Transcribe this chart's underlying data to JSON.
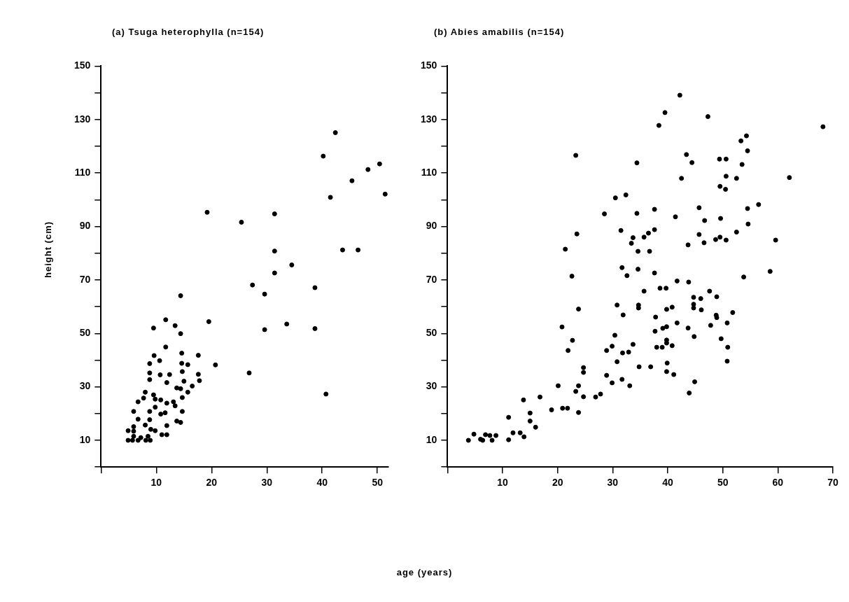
{
  "chart_data": [
    {
      "type": "scatter",
      "title": "(a) Tsuga heterophylla (n=154)",
      "ylabel": "height (cm)",
      "xlabel": "age (years)",
      "marker": "circle",
      "xlim": [
        0,
        52
      ],
      "ylim": [
        0,
        150
      ],
      "xticks": [
        {
          "value": 0,
          "label": null
        },
        10,
        20,
        30,
        40,
        50
      ],
      "yticks": [
        {
          "value": 0,
          "label": null
        },
        10,
        {
          "value": 20,
          "label": null
        },
        30,
        {
          "value": 40,
          "label": null
        },
        50,
        {
          "value": 60,
          "label": null
        },
        70,
        {
          "value": 80,
          "label": null
        },
        90,
        {
          "value": 100,
          "label": null
        },
        110,
        {
          "value": 120,
          "label": null
        },
        130,
        {
          "value": 140,
          "label": null
        },
        150
      ],
      "series": [
        {
          "color": "#000000",
          "x": [
            42.4,
            40.2,
            50.4,
            48.3,
            45.4,
            41.5,
            51.4,
            19.2,
            25.4,
            31.4,
            31.4,
            43.7,
            46.5,
            34.5,
            31.4,
            27.4,
            29.6,
            38.7,
            14.4,
            19.5,
            29.6,
            33.6,
            38.7,
            20.7,
            26.8,
            40.7,
            9.5,
            11.7,
            13.4,
            14.4,
            11.7,
            9.6,
            10.6,
            8.8,
            14.6,
            17.6,
            14.6,
            15.7,
            8.8,
            8.8,
            10.7,
            12.4,
            11.9,
            14.7,
            17.6,
            17.8,
            15.0,
            16.5,
            13.7,
            14.4,
            15.7,
            8.0,
            9.5,
            7.7,
            9.8,
            10.8,
            6.7,
            13.1,
            11.9,
            14.7,
            13.4,
            9.8,
            5.9,
            8.8,
            10.8,
            11.6,
            14.7,
            6.7,
            8.8,
            8.0,
            13.7,
            14.4,
            11.9,
            5.9,
            4.9,
            5.9,
            9.0,
            9.8,
            11.0,
            11.9,
            4.9,
            5.7,
            6.7,
            8.1,
            8.9,
            5.9,
            7.2,
            8.5
          ],
          "values": [
            125.1,
            116.3,
            113.4,
            111.3,
            107.1,
            100.9,
            102.1,
            95.3,
            91.6,
            94.7,
            80.8,
            81.2,
            81.2,
            75.6,
            72.6,
            68.1,
            64.7,
            67.1,
            64.1,
            54.4,
            51.4,
            53.5,
            51.8,
            38.2,
            35.2,
            27.3,
            52.0,
            55.1,
            52.9,
            49.9,
            44.9,
            41.7,
            39.8,
            38.7,
            42.6,
            41.8,
            38.8,
            38.3,
            35.2,
            32.7,
            34.5,
            34.6,
            31.6,
            35.7,
            34.7,
            32.3,
            32.1,
            30.3,
            29.6,
            29.3,
            28.0,
            28.0,
            27.0,
            25.8,
            25.4,
            25.1,
            24.4,
            24.4,
            23.9,
            26.0,
            22.9,
            22.4,
            20.8,
            20.8,
            19.8,
            20.3,
            20.8,
            17.9,
            17.7,
            15.7,
            17.2,
            16.7,
            15.5,
            15.1,
            13.6,
            13.4,
            14.1,
            13.6,
            12.1,
            12.1,
            10,
            10,
            10,
            10,
            10,
            11.5,
            11.0,
            11.5
          ]
        }
      ]
    },
    {
      "type": "scatter",
      "title": "(b) Abies amabilis (n=154)",
      "marker": "circle",
      "xlim": [
        0,
        70
      ],
      "ylim": [
        0,
        150
      ],
      "xticks": [
        {
          "value": 0,
          "label": null
        },
        10,
        20,
        30,
        40,
        50,
        60,
        70
      ],
      "yticks": [
        {
          "value": 0,
          "label": null
        },
        10,
        {
          "value": 20,
          "label": null
        },
        30,
        {
          "value": 40,
          "label": null
        },
        50,
        {
          "value": 60,
          "label": null
        },
        70,
        {
          "value": 80,
          "label": null
        },
        90,
        {
          "value": 100,
          "label": null
        },
        110,
        {
          "value": 120,
          "label": null
        },
        130,
        {
          "value": 140,
          "label": null
        },
        150
      ],
      "series": [
        {
          "color": "#000000",
          "x": [
            3.8,
            4.8,
            6.0,
            6.4,
            6.9,
            8.1,
            7.7,
            8.8,
            11.1,
            11.1,
            11.9,
            13.2,
            13.9,
            13.8,
            15.0,
            15.0,
            16.0,
            16.8,
            18.9,
            20.1,
            20.9,
            21.8,
            20.8,
            21.4,
            21.9,
            22.7,
            22.6,
            23.3,
            23.5,
            23.8,
            23.3,
            23.8,
            23.8,
            24.7,
            24.7,
            24.7,
            26.9,
            27.8,
            28.5,
            28.9,
            28.9,
            29.9,
            29.9,
            30.5,
            30.4,
            30.8,
            30.8,
            31.5,
            31.7,
            32.4,
            31.9,
            31.7,
            31.8,
            32.6,
            32.9,
            33.1,
            33.4,
            33.7,
            33.7,
            34.4,
            34.4,
            34.6,
            34.6,
            34.7,
            34.7,
            35.7,
            34.8,
            35.7,
            36.5,
            36.7,
            36.9,
            37.6,
            37.6,
            37.6,
            37.8,
            37.7,
            38.0,
            38.4,
            38.6,
            39.7,
            39.5,
            39.0,
            39.1,
            39.8,
            39.8,
            40.8,
            39.8,
            39.8,
            40.8,
            39.9,
            39.8,
            41.1,
            41.4,
            42.2,
            41.7,
            41.7,
            42.5,
            43.4,
            43.8,
            43.7,
            44.4,
            43.7,
            43.9,
            44.7,
            44.7,
            44.7,
            44.8,
            44.9,
            45.7,
            45.7,
            46.0,
            46.6,
            46.7,
            46.1,
            47.3,
            47.6,
            47.8,
            48.9,
            48.7,
            48.8,
            48.9,
            49.4,
            50.6,
            49.5,
            50.5,
            50.6,
            49.6,
            49.5,
            50.6,
            49.7,
            50.8,
            50.9,
            50.8,
            51.8,
            52.5,
            52.5,
            53.3,
            53.5,
            54.3,
            54.5,
            54.5,
            54.6,
            53.8,
            56.5,
            58.6,
            59.6,
            62.1,
            68.2
          ],
          "values": [
            10,
            12.3,
            10.4,
            10,
            12.1,
            10,
            11.8,
            11.8,
            18.6,
            10.2,
            12.8,
            12.8,
            11.3,
            25.1,
            20.2,
            17.2,
            14.9,
            26.2,
            21.4,
            30.4,
            22.0,
            22.0,
            52.4,
            81.5,
            43.6,
            47.4,
            71.4,
            116.6,
            87.2,
            59.1,
            28.3,
            30.4,
            20.4,
            37.2,
            35.4,
            26.3,
            26.2,
            27.3,
            94.7,
            43.6,
            34.3,
            31.5,
            45.2,
            100.7,
            49.3,
            60.6,
            39.4,
            88.5,
            74.6,
            101.8,
            56.9,
            32.8,
            42.7,
            71.6,
            43.0,
            30.4,
            83.7,
            85.8,
            45.9,
            113.8,
            94.9,
            80.7,
            74.0,
            60.6,
            59.5,
            65.8,
            37.5,
            86.0,
            87.5,
            80.7,
            37.5,
            96.4,
            88.8,
            72.6,
            56.1,
            50.8,
            44.8,
            127.8,
            66.9,
            66.9,
            132.6,
            44.8,
            51.9,
            52.5,
            59.0,
            59.8,
            47.5,
            46.4,
            45.4,
            38.9,
            35.7,
            34.6,
            93.6,
            139.1,
            69.6,
            53.9,
            108.0,
            116.9,
            69.2,
            83.1,
            113.9,
            52.0,
            27.7,
            63.5,
            60.9,
            59.5,
            48.8,
            31.9,
            97.0,
            87.0,
            63.0,
            83.9,
            92.2,
            58.8,
            131.1,
            65.8,
            53.0,
            63.7,
            85.1,
            56.8,
            55.9,
            115.2,
            115.2,
            105.0,
            103.9,
            108.8,
            93.0,
            86.0,
            84.9,
            48.0,
            53.9,
            44.8,
            39.6,
            57.8,
            108.0,
            87.9,
            122.0,
            113.2,
            123.9,
            118.3,
            96.7,
            90.9,
            71.1,
            98.2,
            73.2,
            84.9,
            108.3,
            127.3
          ]
        }
      ]
    }
  ]
}
